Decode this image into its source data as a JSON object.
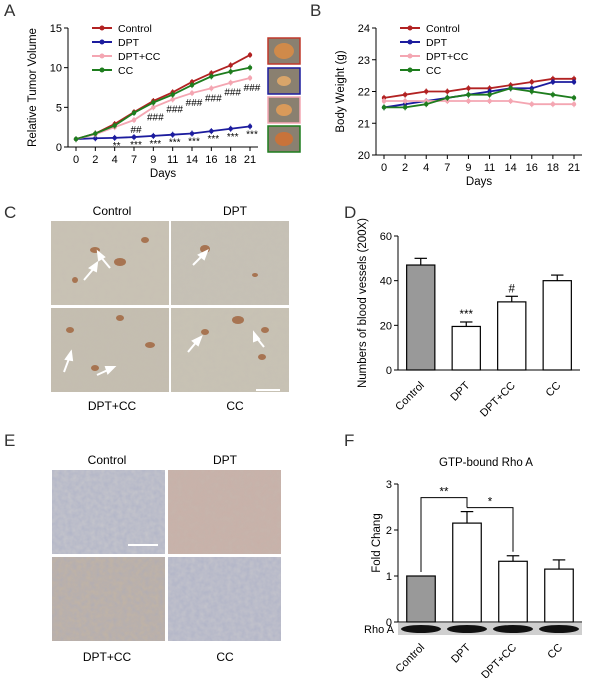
{
  "panels": {
    "A": {
      "letter": "A"
    },
    "B": {
      "letter": "B"
    },
    "C": {
      "letter": "C",
      "labels": [
        "Control",
        "DPT",
        "DPT+CC",
        "CC"
      ]
    },
    "D": {
      "letter": "D"
    },
    "E": {
      "letter": "E",
      "labels": [
        "Control",
        "DPT",
        "DPT+CC",
        "CC"
      ]
    },
    "F": {
      "letter": "F"
    }
  },
  "colors": {
    "Control": "#b22222",
    "DPT": "#1c1c9e",
    "DPT+CC": "#f4a6b2",
    "CC": "#1e7d1e"
  },
  "chart_data": [
    {
      "panel": "A",
      "type": "line",
      "title": "",
      "xlabel": "Days",
      "ylabel": "Relative Tumor Volume",
      "x": [
        0,
        2,
        4,
        7,
        9,
        11,
        14,
        16,
        18,
        21
      ],
      "ylim": [
        0,
        15
      ],
      "yticks": [
        0,
        5,
        10,
        15
      ],
      "series": [
        {
          "name": "Control",
          "values": [
            1,
            1.7,
            2.9,
            4.4,
            5.8,
            6.9,
            8.2,
            9.3,
            10.3,
            11.6
          ]
        },
        {
          "name": "DPT",
          "values": [
            1,
            1.1,
            1.15,
            1.25,
            1.4,
            1.55,
            1.7,
            2.0,
            2.3,
            2.6
          ]
        },
        {
          "name": "DPT+CC",
          "values": [
            1,
            1.6,
            2.5,
            3.4,
            5.0,
            6.0,
            6.8,
            7.4,
            8.1,
            8.7
          ]
        },
        {
          "name": "CC",
          "values": [
            1,
            1.7,
            2.7,
            4.3,
            5.6,
            6.6,
            7.8,
            8.9,
            9.5,
            10.0
          ]
        }
      ],
      "annotations": {
        "hash": {
          "x": [
            7,
            9,
            11,
            14,
            16,
            18,
            21
          ],
          "text": [
            "##",
            "###",
            "###",
            "###",
            "###",
            "###",
            "###"
          ]
        },
        "stars": {
          "x": [
            4,
            7,
            9,
            11,
            14,
            16,
            18,
            21
          ],
          "text": [
            "**",
            "***",
            "***",
            "***",
            "***",
            "***",
            "***",
            "***"
          ]
        }
      }
    },
    {
      "panel": "B",
      "type": "line",
      "title": "",
      "xlabel": "Days",
      "ylabel": "Body Weight (g)",
      "x": [
        0,
        2,
        4,
        7,
        9,
        11,
        14,
        16,
        18,
        21
      ],
      "ylim": [
        20,
        24
      ],
      "yticks": [
        20,
        21,
        22,
        23,
        24
      ],
      "series": [
        {
          "name": "Control",
          "values": [
            21.8,
            21.9,
            22.0,
            22.0,
            22.1,
            22.1,
            22.2,
            22.3,
            22.4,
            22.4
          ]
        },
        {
          "name": "DPT",
          "values": [
            21.5,
            21.6,
            21.7,
            21.8,
            21.9,
            22.0,
            22.1,
            22.1,
            22.3,
            22.3
          ]
        },
        {
          "name": "DPT+CC",
          "values": [
            21.7,
            21.7,
            21.7,
            21.7,
            21.7,
            21.7,
            21.7,
            21.6,
            21.6,
            21.6
          ]
        },
        {
          "name": "CC",
          "values": [
            21.5,
            21.5,
            21.6,
            21.8,
            21.9,
            21.9,
            22.1,
            22.0,
            21.9,
            21.8
          ]
        }
      ]
    },
    {
      "panel": "D",
      "type": "bar",
      "title": "",
      "ylabel": "Numbers of blood vessels (200X)",
      "categories": [
        "Control",
        "DPT",
        "DPT+CC",
        "CC"
      ],
      "values": [
        47,
        19.5,
        30.5,
        40
      ],
      "errors": [
        3,
        2,
        2.5,
        2.5
      ],
      "ylim": [
        0,
        60
      ],
      "yticks": [
        0,
        20,
        40,
        60
      ],
      "annotations": [
        "",
        "***",
        "#",
        ""
      ]
    },
    {
      "panel": "F",
      "type": "bar",
      "title": "GTP-bound Rho A",
      "ylabel": "Fold Chang",
      "categories": [
        "Control",
        "DPT",
        "DPT+CC",
        "CC"
      ],
      "values": [
        1.0,
        2.15,
        1.32,
        1.15
      ],
      "errors": [
        0,
        0.25,
        0.12,
        0.2
      ],
      "ylim": [
        0,
        3
      ],
      "yticks": [
        0,
        1,
        2,
        3
      ],
      "significance": [
        {
          "from": "Control",
          "to": "DPT",
          "text": "**"
        },
        {
          "from": "DPT",
          "to": "DPT+CC",
          "text": "*"
        }
      ],
      "blot_label": "Rho A"
    }
  ]
}
